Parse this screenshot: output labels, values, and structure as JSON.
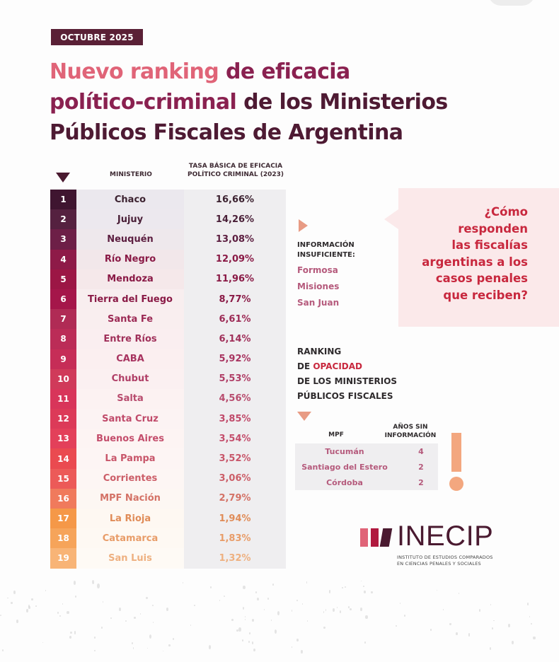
{
  "date_badge": "OCTUBRE 2025",
  "title": {
    "part_pink": "Nuevo ranking",
    "part_wine_1": " de eficacia",
    "part_wine_2": "político-criminal",
    "part_dark_1": " de los Ministerios",
    "part_dark_2": "Públicos Fiscales de Argentina"
  },
  "table": {
    "header_ministry": "MINISTERIO",
    "header_rate_line1": "TASA BÁSICA DE EFICACIA",
    "header_rate_line2": "POLÍTICO CRIMINAL (2023)",
    "rows": [
      {
        "rank": "1",
        "ministry": "Chaco",
        "rate": "16,66%",
        "rank_color": "#3f1530",
        "text_color": "#3c2230",
        "bg": "#ebe8ee"
      },
      {
        "rank": "2",
        "ministry": "Jujuy",
        "rate": "14,26%",
        "rank_color": "#552140",
        "text_color": "#4a2038",
        "bg": "#ece8ee"
      },
      {
        "rank": "3",
        "ministry": "Neuquén",
        "rate": "13,08%",
        "rank_color": "#6d1f47",
        "text_color": "#5c1e40",
        "bg": "#eee8ec"
      },
      {
        "rank": "4",
        "ministry": "Río Negro",
        "rate": "12,09%",
        "rank_color": "#8e1a48",
        "text_color": "#8a1a46",
        "bg": "#f2e7ea"
      },
      {
        "rank": "5",
        "ministry": "Mendoza",
        "rate": "11,96%",
        "rank_color": "#9c1645",
        "text_color": "#8a1a46",
        "bg": "#f5e8ea"
      },
      {
        "rank": "6",
        "ministry": "Tierra del Fuego",
        "rate": "8,77%",
        "rank_color": "#a5164a",
        "text_color": "#8a1a46",
        "bg": "#f8eeef"
      },
      {
        "rank": "7",
        "ministry": "Santa Fe",
        "rate": "6,61%",
        "rank_color": "#b02b55",
        "text_color": "#9c2a55",
        "bg": "#f9eeef"
      },
      {
        "rank": "8",
        "ministry": "Entre Ríos",
        "rate": "6,14%",
        "rank_color": "#bb2c57",
        "text_color": "#a0305a",
        "bg": "#faeef0"
      },
      {
        "rank": "9",
        "ministry": "CABA",
        "rate": "5,92%",
        "rank_color": "#c62d57",
        "text_color": "#a83460",
        "bg": "#fbeff0"
      },
      {
        "rank": "10",
        "ministry": "Chubut",
        "rate": "5,53%",
        "rank_color": "#d03a5a",
        "text_color": "#b03e66",
        "bg": "#fbf0f1"
      },
      {
        "rank": "11",
        "ministry": "Salta",
        "rate": "4,56%",
        "rank_color": "#d8355a",
        "text_color": "#b84c6e",
        "bg": "#fcf2f2"
      },
      {
        "rank": "12",
        "ministry": "Santa Cruz",
        "rate": "3,85%",
        "rank_color": "#dc3a58",
        "text_color": "#c04a6a",
        "bg": "#fcf3f3"
      },
      {
        "rank": "13",
        "ministry": "Buenos Aires",
        "rate": "3,54%",
        "rank_color": "#e3405a",
        "text_color": "#c44e6c",
        "bg": "#fdf4f3"
      },
      {
        "rank": "14",
        "ministry": "La Pampa",
        "rate": "3,52%",
        "rank_color": "#ea4a50",
        "text_color": "#c8566a",
        "bg": "#fdf5f4"
      },
      {
        "rank": "15",
        "ministry": "Corrientes",
        "rate": "3,06%",
        "rank_color": "#ec5a58",
        "text_color": "#cc5e68",
        "bg": "#fdf6f4"
      },
      {
        "rank": "16",
        "ministry": "MPF Nación",
        "rate": "2,79%",
        "rank_color": "#f07a5c",
        "text_color": "#d47266",
        "bg": "#fdf7f3"
      },
      {
        "rank": "17",
        "ministry": "La Rioja",
        "rate": "1,94%",
        "rank_color": "#f59848",
        "text_color": "#e08c58",
        "bg": "#fef8f2"
      },
      {
        "rank": "18",
        "ministry": "Catamarca",
        "rate": "1,83%",
        "rank_color": "#f6a45a",
        "text_color": "#e89c68",
        "bg": "#fef9f3"
      },
      {
        "rank": "19",
        "ministry": "San Luis",
        "rate": "1,32%",
        "rank_color": "#f8b476",
        "text_color": "#eeb080",
        "bg": "#fefaf5"
      }
    ]
  },
  "insufficient": {
    "label_line1": "INFORMACIÓN",
    "label_line2": "INSUFICIENTE:",
    "items": [
      "Formosa",
      "Misiones",
      "San Juan"
    ]
  },
  "callout": {
    "lines": [
      "¿Cómo",
      "responden",
      "las fiscalías",
      "argentinas a los",
      "casos penales",
      "que reciben?"
    ]
  },
  "opacity": {
    "title_line1": "RANKING",
    "title_line2_a": "DE ",
    "title_line2_b": "OPACIDAD",
    "title_line3": "DE LOS MINISTERIOS",
    "title_line4": "PÚBLICOS FISCALES",
    "header_mpf": "MPF",
    "header_years_line1": "AÑOS SIN",
    "header_years_line2": "INFORMACIÓN",
    "rows": [
      {
        "mpf": "Tucumán",
        "years": "4"
      },
      {
        "mpf": "Santiago del Estero",
        "years": "2"
      },
      {
        "mpf": "Córdoba",
        "years": "2"
      }
    ]
  },
  "logo": {
    "name": "INECIP",
    "subtitle_line1": "INSTITUTO DE ESTUDIOS COMPARADOS",
    "subtitle_line2": "EN CIENCIAS PENALES Y SOCIALES"
  }
}
